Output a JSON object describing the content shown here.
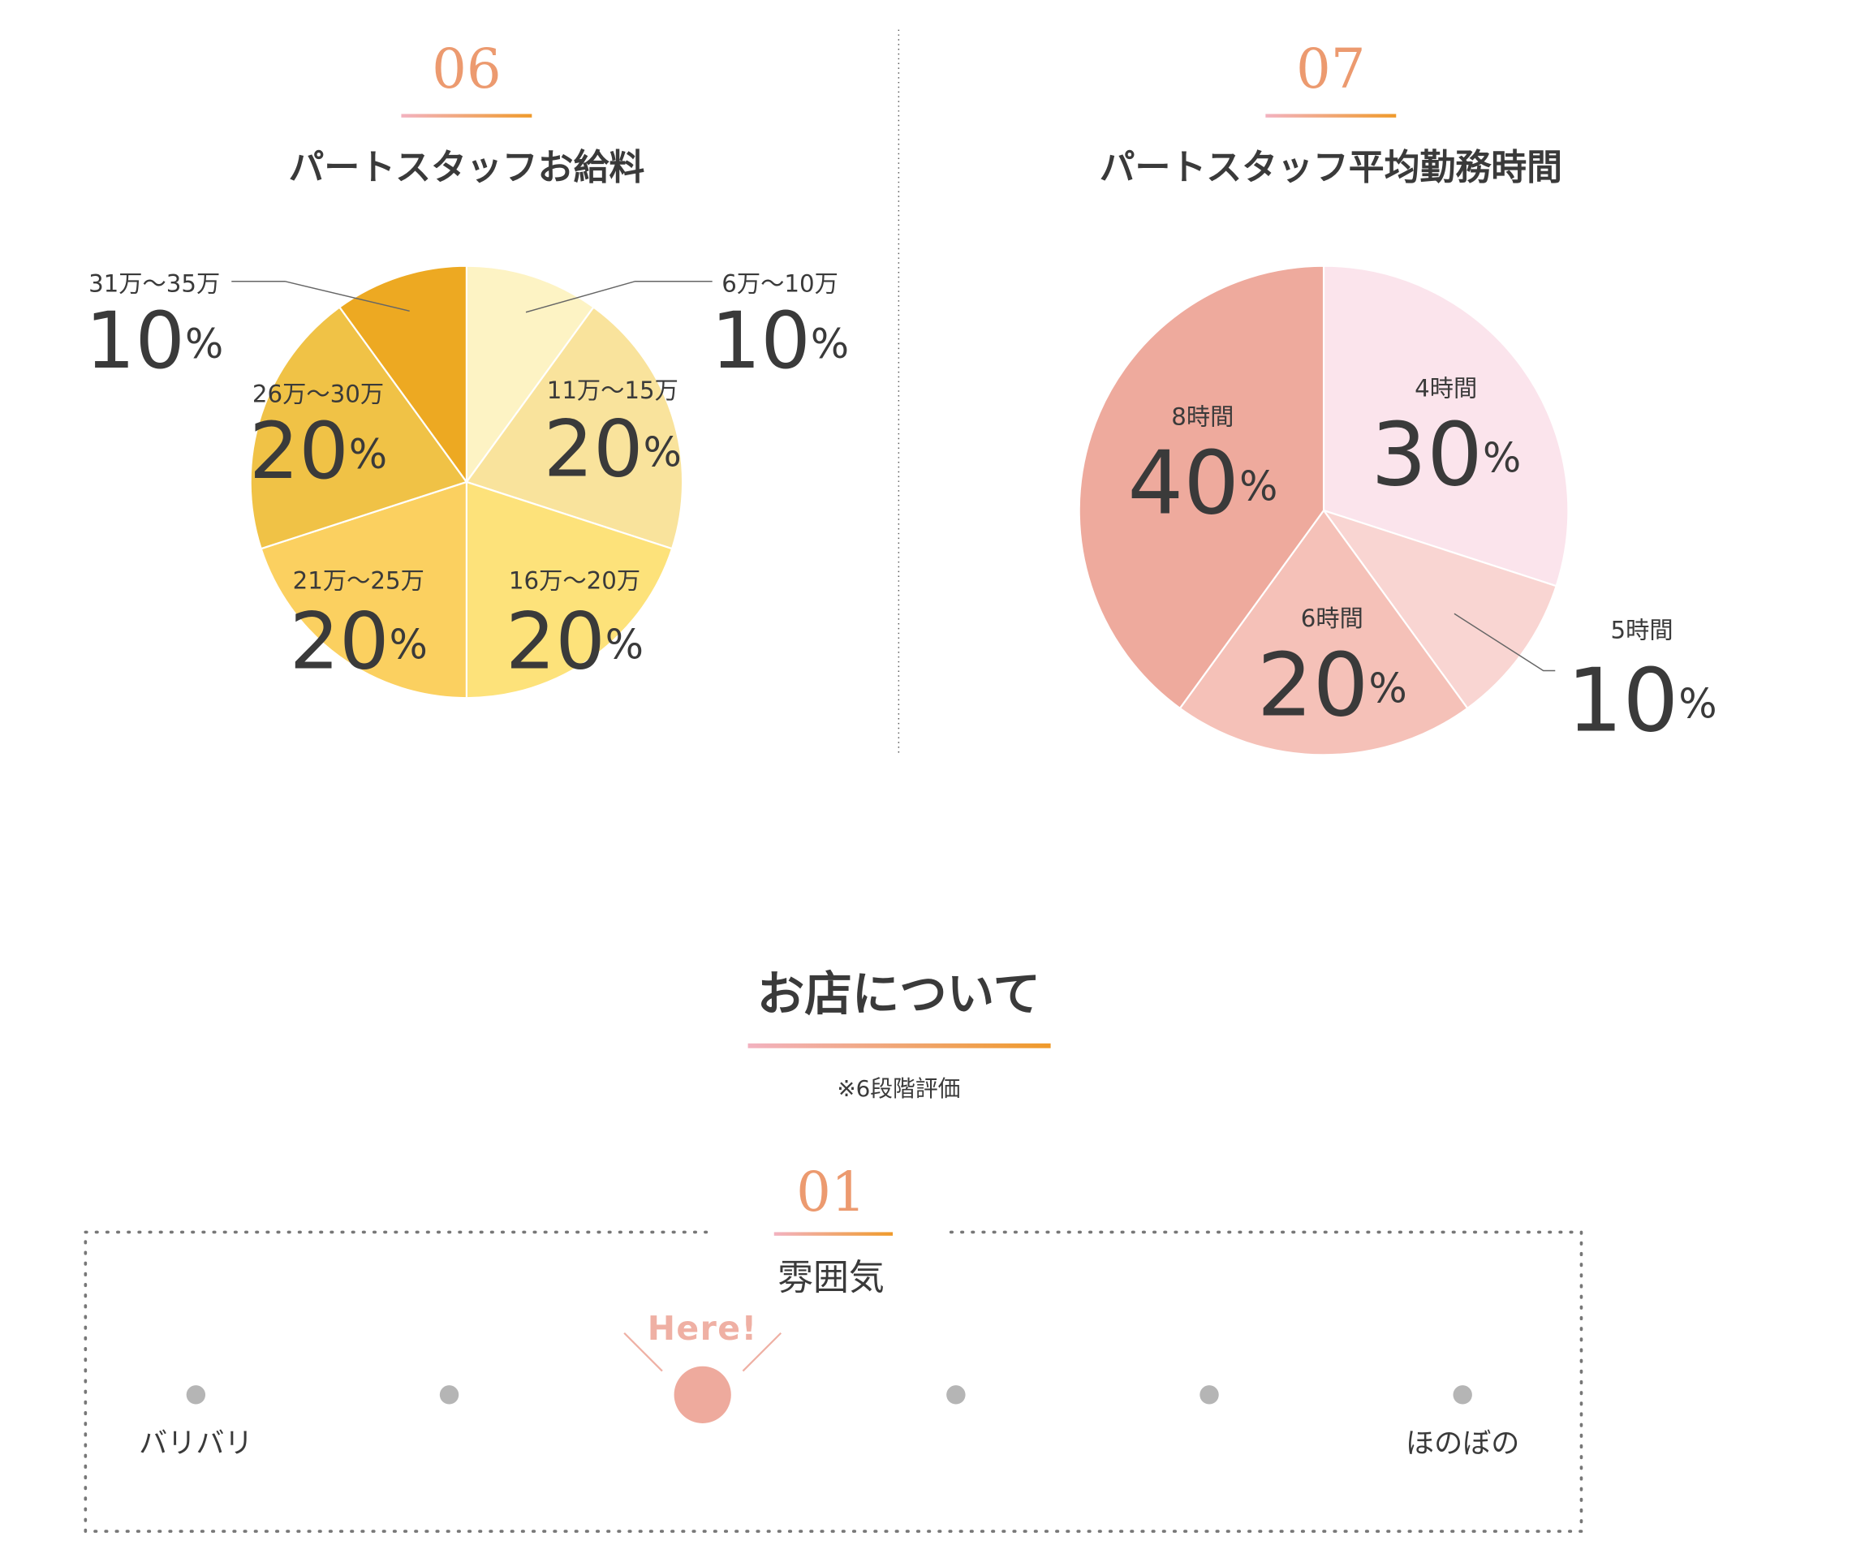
{
  "chart_data": [
    {
      "type": "pie",
      "number": "06",
      "title": "パートスタッフお給料",
      "value_unit": "%",
      "categories": [
        "6万〜10万",
        "11万〜15万",
        "16万〜20万",
        "21万〜25万",
        "26万〜30万",
        "31万〜35万"
      ],
      "values": [
        10,
        20,
        20,
        20,
        20,
        10
      ],
      "colors": [
        "#fdf3c4",
        "#f9e39c",
        "#fde27a",
        "#fbd060",
        "#f0c246",
        "#eda922"
      ]
    },
    {
      "type": "pie",
      "number": "07",
      "title": "パートスタッフ平均勤務時間",
      "value_unit": "%",
      "categories": [
        "4時間",
        "5時間",
        "6時間",
        "8時間"
      ],
      "values": [
        30,
        10,
        20,
        40
      ],
      "colors": [
        "#fbe4ec",
        "#f9d5d2",
        "#f5c1b8",
        "#eeaa9d"
      ]
    }
  ],
  "section": {
    "title": "お店について",
    "note": "※6段階評価"
  },
  "rating": {
    "number": "01",
    "label": "雰囲気",
    "marker": "Here!",
    "left": "バリバリ",
    "right": "ほのぼの",
    "steps": 6,
    "value": 3
  }
}
